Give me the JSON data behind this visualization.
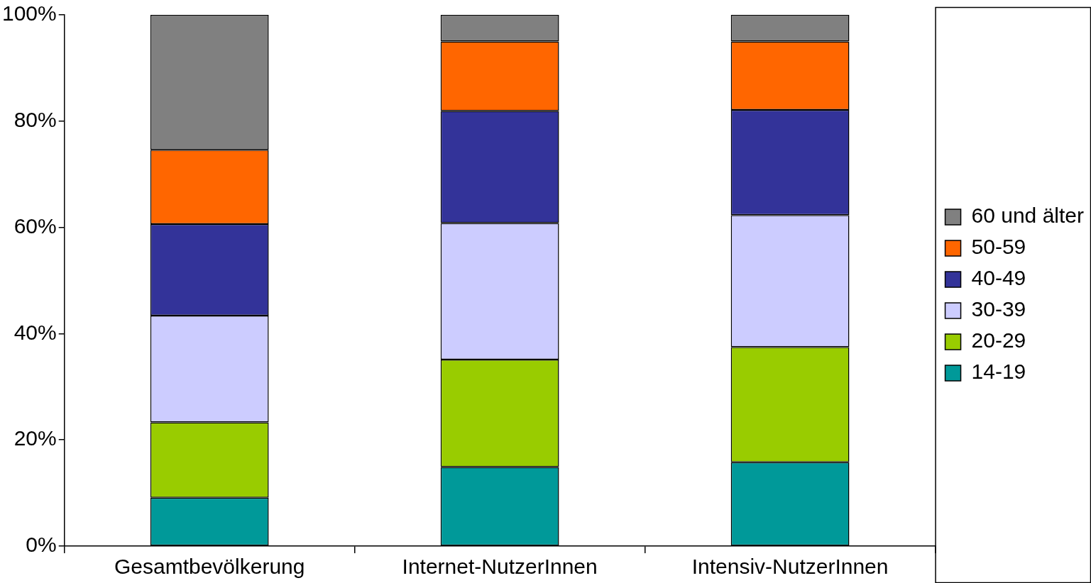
{
  "chart_data": {
    "type": "bar",
    "stacked": true,
    "categories": [
      "Gesamtbevölkerung",
      "Internet-NutzerInnen",
      "Intensiv-NutzerInnen"
    ],
    "series": [
      {
        "name": "14-19",
        "color": "#009999",
        "values": [
          9.1,
          14.9,
          15.8
        ]
      },
      {
        "name": "20-29",
        "color": "#99cc00",
        "values": [
          14.2,
          20.2,
          21.7
        ]
      },
      {
        "name": "30-39",
        "color": "#ccccff",
        "values": [
          20.1,
          25.7,
          24.8
        ]
      },
      {
        "name": "40-49",
        "color": "#333399",
        "values": [
          17.2,
          21.1,
          19.8
        ]
      },
      {
        "name": "50-59",
        "color": "#ff6600",
        "values": [
          14.0,
          13.1,
          12.9
        ]
      },
      {
        "name": "60 und älter",
        "color": "#808080",
        "values": [
          25.4,
          5.0,
          5.0
        ]
      }
    ],
    "ylim": [
      0,
      100
    ],
    "yticks": [
      {
        "value": 0,
        "label": "0%"
      },
      {
        "value": 20,
        "label": "20%"
      },
      {
        "value": 40,
        "label": "40%"
      },
      {
        "value": 60,
        "label": "60%"
      },
      {
        "value": 80,
        "label": "80%"
      },
      {
        "value": 100,
        "label": "100%"
      }
    ],
    "grid": false,
    "legend": "right"
  }
}
